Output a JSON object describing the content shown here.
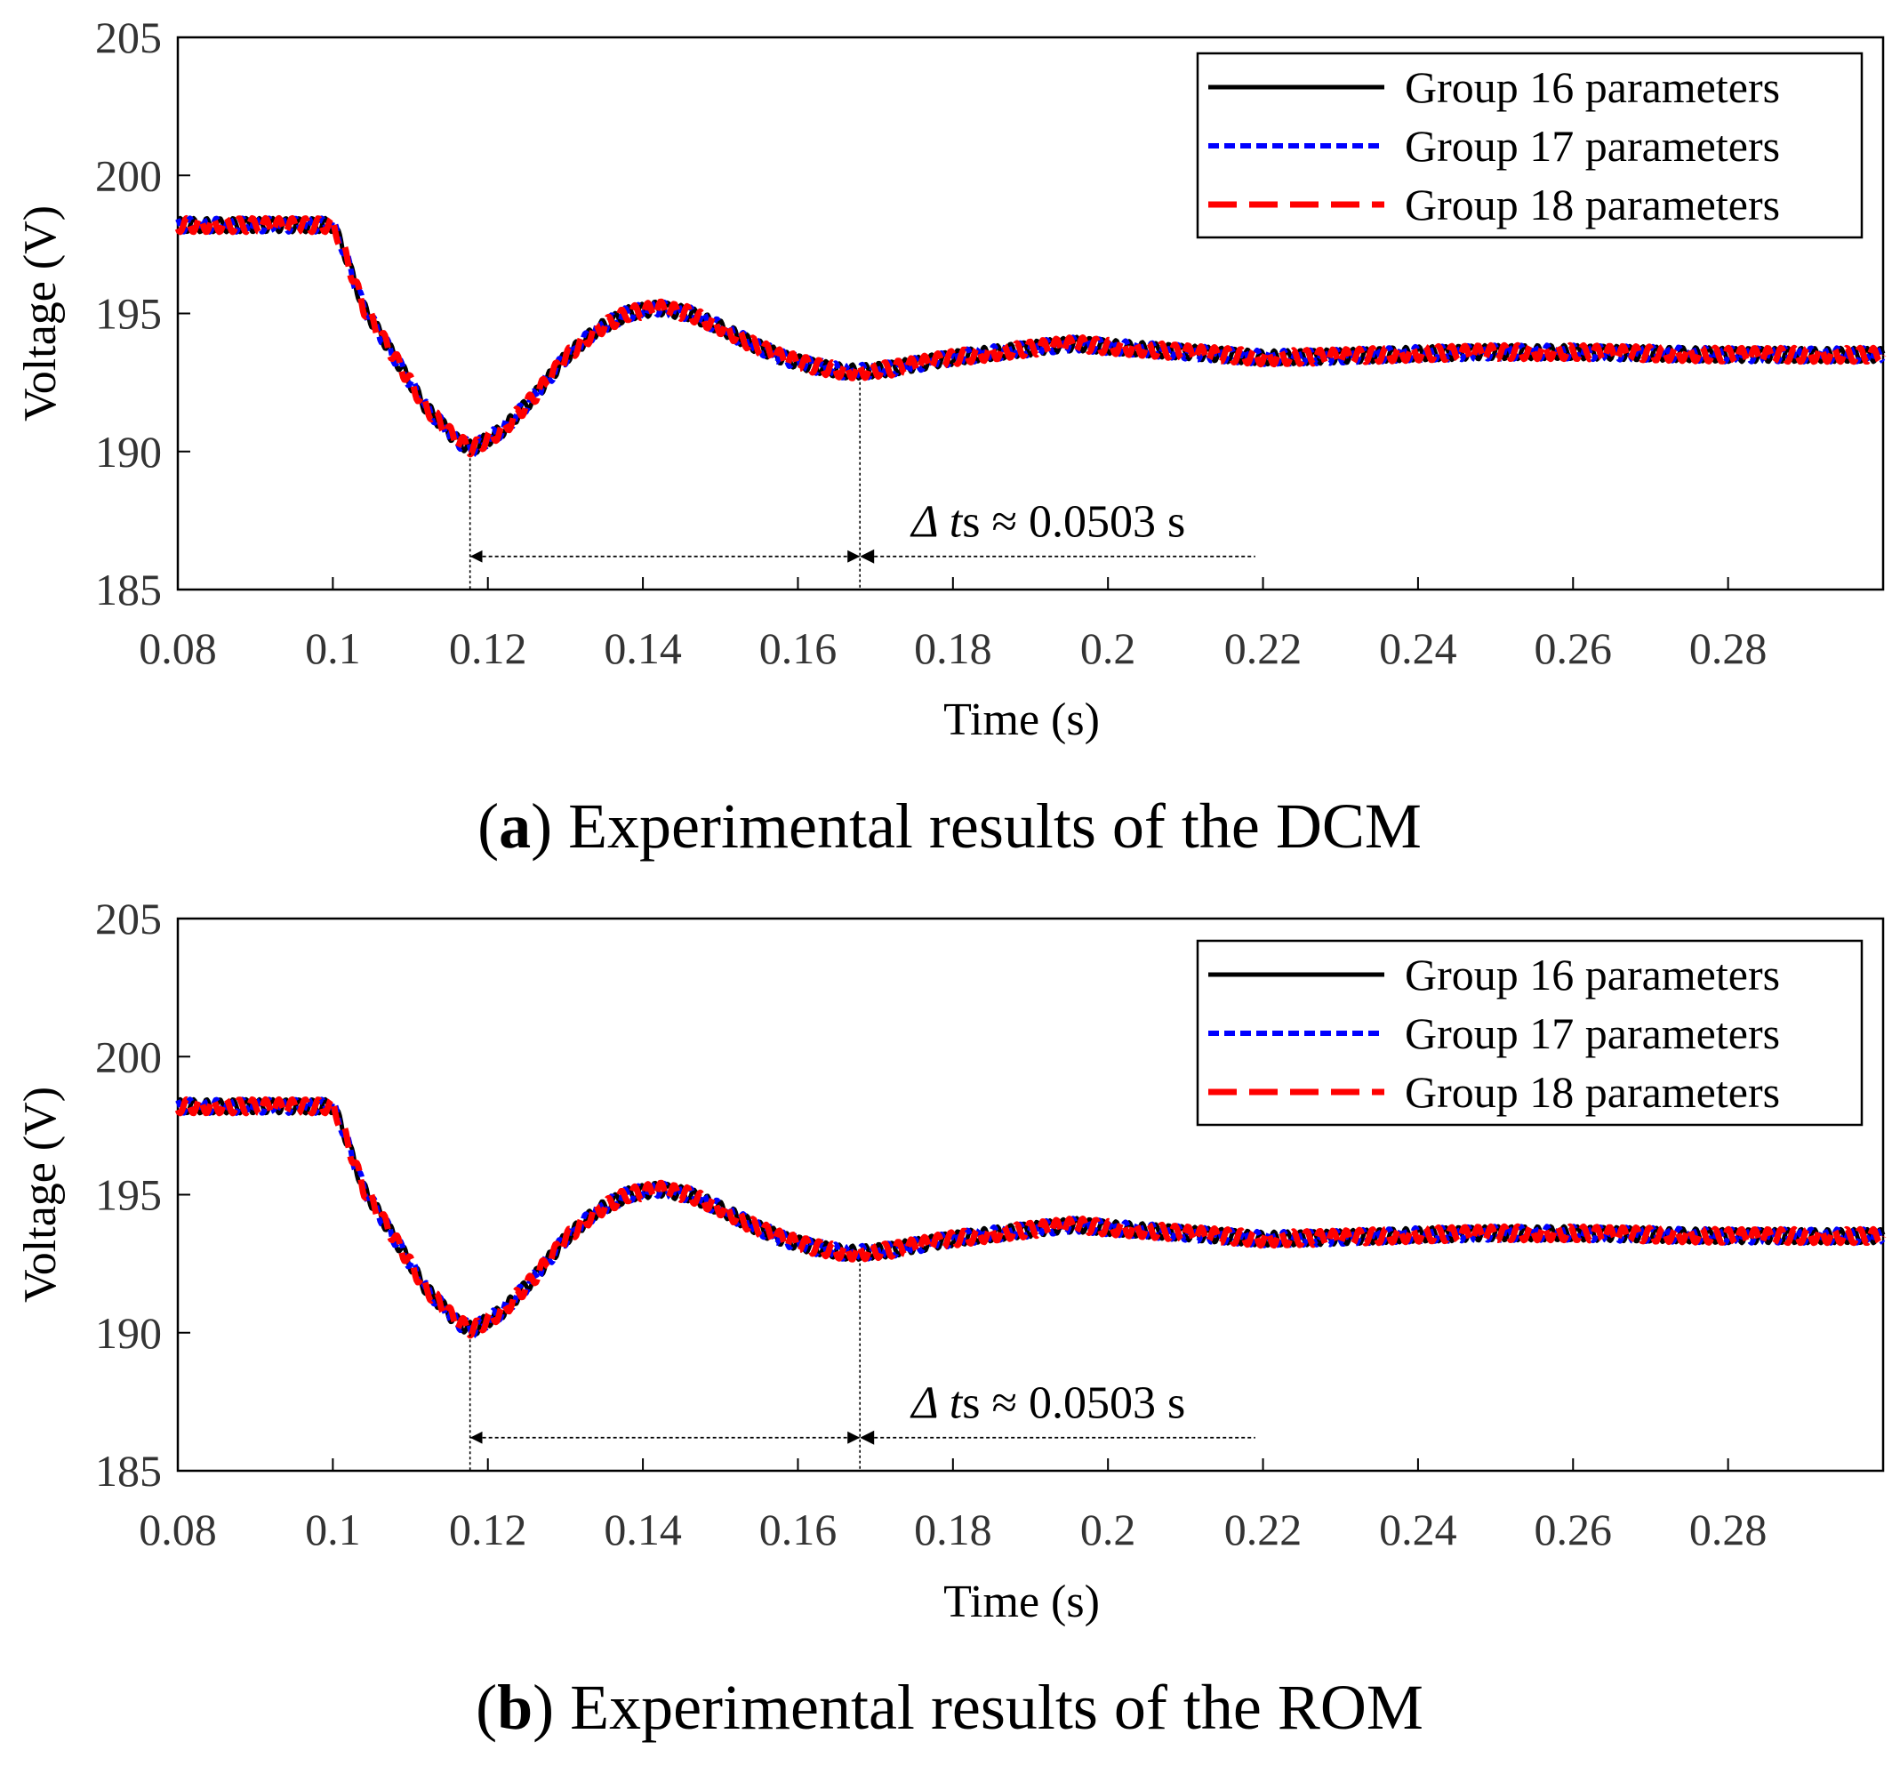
{
  "figure": {
    "panels": [
      {
        "letter": "a",
        "caption": " Experimental results of the DCM"
      },
      {
        "letter": "b",
        "caption": " Experimental results of the ROM"
      }
    ]
  },
  "colors": {
    "group16": "#000000",
    "group17": "#0000ff",
    "group18": "#ff0000",
    "axis": "#000000",
    "annotation": "#000000"
  },
  "chart_data": [
    {
      "type": "line",
      "panel": "a",
      "xlabel": "Time (s)",
      "ylabel": "Voltage (V)",
      "xlim": [
        0.08,
        0.3
      ],
      "ylim": [
        185,
        205
      ],
      "xticks": [
        0.08,
        0.1,
        0.12,
        0.14,
        0.16,
        0.18,
        0.2,
        0.22,
        0.24,
        0.26,
        0.28
      ],
      "xtick_labels": [
        "0.08",
        "0.1",
        "0.12",
        "0.14",
        "0.16",
        "0.18",
        "0.2",
        "0.22",
        "0.24",
        "0.26",
        "0.28"
      ],
      "yticks": [
        185,
        190,
        195,
        200,
        205
      ],
      "ytick_labels": [
        "185",
        "190",
        "195",
        "200",
        "205"
      ],
      "grid": false,
      "legend_position": "top-right",
      "series": [
        {
          "name": "Group 16 parameters",
          "color": "#000000",
          "style": "solid"
        },
        {
          "name": "Group 17 parameters",
          "color": "#0000ff",
          "style": "dotted"
        },
        {
          "name": "Group 18 parameters",
          "color": "#ff0000",
          "style": "dashed"
        }
      ],
      "x": [
        0.08,
        0.1,
        0.101,
        0.104,
        0.108,
        0.112,
        0.116,
        0.118,
        0.122,
        0.126,
        0.13,
        0.134,
        0.138,
        0.142,
        0.146,
        0.15,
        0.154,
        0.158,
        0.162,
        0.166,
        0.168,
        0.172,
        0.176,
        0.18,
        0.186,
        0.192,
        0.196,
        0.2,
        0.205,
        0.21,
        0.215,
        0.22,
        0.23,
        0.24,
        0.25,
        0.26,
        0.27,
        0.28,
        0.29,
        0.3
      ],
      "values": [
        198.2,
        198.2,
        197.6,
        195.2,
        193.4,
        191.6,
        190.4,
        190.1,
        190.8,
        192.0,
        193.4,
        194.4,
        195.0,
        195.2,
        195.0,
        194.5,
        193.9,
        193.4,
        193.1,
        192.9,
        192.9,
        193.0,
        193.2,
        193.4,
        193.6,
        193.8,
        193.9,
        193.8,
        193.7,
        193.6,
        193.5,
        193.4,
        193.45,
        193.55,
        193.6,
        193.6,
        193.55,
        193.5,
        193.5,
        193.5
      ],
      "ripple_amplitude": 0.25,
      "annotation": {
        "text_symbol": "Δ",
        "text_t": "t",
        "text_sub": "s",
        "text_rest": " ≈ 0.0503 s",
        "t_start": 0.1177,
        "t_end": 0.168,
        "y_arrow": 186.2,
        "t_line_end": 0.219
      }
    },
    {
      "type": "line",
      "panel": "b",
      "xlabel": "Time (s)",
      "ylabel": "Voltage (V)",
      "xlim": [
        0.08,
        0.3
      ],
      "ylim": [
        185,
        205
      ],
      "xticks": [
        0.08,
        0.1,
        0.12,
        0.14,
        0.16,
        0.18,
        0.2,
        0.22,
        0.24,
        0.26,
        0.28
      ],
      "xtick_labels": [
        "0.08",
        "0.1",
        "0.12",
        "0.14",
        "0.16",
        "0.18",
        "0.2",
        "0.22",
        "0.24",
        "0.26",
        "0.28"
      ],
      "yticks": [
        185,
        190,
        195,
        200,
        205
      ],
      "ytick_labels": [
        "185",
        "190",
        "195",
        "200",
        "205"
      ],
      "grid": false,
      "legend_position": "top-right",
      "series": [
        {
          "name": "Group 16 parameters",
          "color": "#000000",
          "style": "solid"
        },
        {
          "name": "Group 17 parameters",
          "color": "#0000ff",
          "style": "dotted"
        },
        {
          "name": "Group 18 parameters",
          "color": "#ff0000",
          "style": "dashed"
        }
      ],
      "x": [
        0.08,
        0.1,
        0.101,
        0.104,
        0.108,
        0.112,
        0.116,
        0.118,
        0.122,
        0.126,
        0.13,
        0.134,
        0.138,
        0.142,
        0.146,
        0.15,
        0.154,
        0.158,
        0.162,
        0.166,
        0.168,
        0.172,
        0.176,
        0.18,
        0.186,
        0.192,
        0.196,
        0.2,
        0.205,
        0.21,
        0.215,
        0.22,
        0.23,
        0.24,
        0.25,
        0.26,
        0.27,
        0.28,
        0.29,
        0.3
      ],
      "values": [
        198.2,
        198.2,
        197.6,
        195.2,
        193.4,
        191.6,
        190.4,
        190.1,
        190.8,
        192.0,
        193.4,
        194.4,
        195.0,
        195.2,
        195.0,
        194.5,
        193.9,
        193.4,
        193.1,
        192.9,
        192.9,
        193.0,
        193.2,
        193.4,
        193.6,
        193.8,
        193.9,
        193.8,
        193.7,
        193.6,
        193.5,
        193.4,
        193.45,
        193.55,
        193.6,
        193.6,
        193.55,
        193.5,
        193.5,
        193.5
      ],
      "ripple_amplitude": 0.25,
      "annotation": {
        "text_symbol": "Δ",
        "text_t": "t",
        "text_sub": "s",
        "text_rest": " ≈ 0.0503 s",
        "t_start": 0.1177,
        "t_end": 0.168,
        "y_arrow": 186.2,
        "t_line_end": 0.219
      }
    }
  ]
}
